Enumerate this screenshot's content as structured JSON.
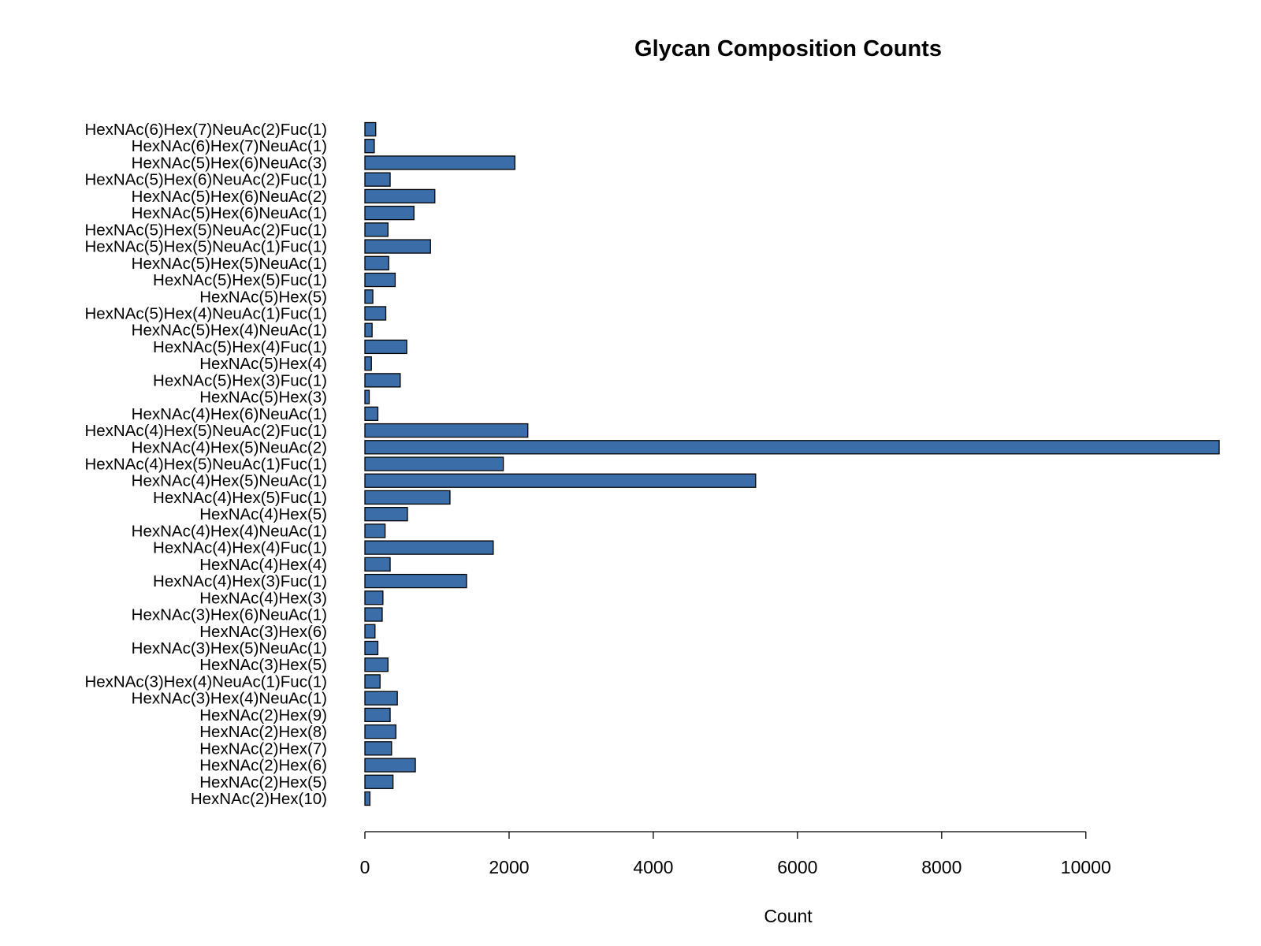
{
  "chart_data": {
    "type": "bar",
    "orientation": "horizontal",
    "title": "Glycan Composition Counts",
    "xlabel": "Count",
    "ylabel": "",
    "xlim": [
      0,
      11850
    ],
    "xticks": [
      0,
      2000,
      4000,
      6000,
      8000,
      10000
    ],
    "xtick_labels": [
      "0",
      "2000",
      "4000",
      "6000",
      "8000",
      "10000"
    ],
    "grid": false,
    "legend": false,
    "bar_color": "#3b6ea8",
    "bar_edge_color": "#000000",
    "categories": [
      "HexNAc(2)Hex(10)",
      "HexNAc(2)Hex(5)",
      "HexNAc(2)Hex(6)",
      "HexNAc(2)Hex(7)",
      "HexNAc(2)Hex(8)",
      "HexNAc(2)Hex(9)",
      "HexNAc(3)Hex(4)NeuAc(1)",
      "HexNAc(3)Hex(4)NeuAc(1)Fuc(1)",
      "HexNAc(3)Hex(5)",
      "HexNAc(3)Hex(5)NeuAc(1)",
      "HexNAc(3)Hex(6)",
      "HexNAc(3)Hex(6)NeuAc(1)",
      "HexNAc(4)Hex(3)",
      "HexNAc(4)Hex(3)Fuc(1)",
      "HexNAc(4)Hex(4)",
      "HexNAc(4)Hex(4)Fuc(1)",
      "HexNAc(4)Hex(4)NeuAc(1)",
      "HexNAc(4)Hex(5)",
      "HexNAc(4)Hex(5)Fuc(1)",
      "HexNAc(4)Hex(5)NeuAc(1)",
      "HexNAc(4)Hex(5)NeuAc(1)Fuc(1)",
      "HexNAc(4)Hex(5)NeuAc(2)",
      "HexNAc(4)Hex(5)NeuAc(2)Fuc(1)",
      "HexNAc(4)Hex(6)NeuAc(1)",
      "HexNAc(5)Hex(3)",
      "HexNAc(5)Hex(3)Fuc(1)",
      "HexNAc(5)Hex(4)",
      "HexNAc(5)Hex(4)Fuc(1)",
      "HexNAc(5)Hex(4)NeuAc(1)",
      "HexNAc(5)Hex(4)NeuAc(1)Fuc(1)",
      "HexNAc(5)Hex(5)",
      "HexNAc(5)Hex(5)Fuc(1)",
      "HexNAc(5)Hex(5)NeuAc(1)",
      "HexNAc(5)Hex(5)NeuAc(1)Fuc(1)",
      "HexNAc(5)Hex(5)NeuAc(2)Fuc(1)",
      "HexNAc(5)Hex(6)NeuAc(1)",
      "HexNAc(5)Hex(6)NeuAc(2)",
      "HexNAc(5)Hex(6)NeuAc(2)Fuc(1)",
      "HexNAc(5)Hex(6)NeuAc(3)",
      "HexNAc(6)Hex(7)NeuAc(1)",
      "HexNAc(6)Hex(7)NeuAc(2)Fuc(1)"
    ],
    "values": [
      70,
      390,
      700,
      370,
      430,
      350,
      450,
      210,
      320,
      180,
      140,
      240,
      250,
      1410,
      350,
      1780,
      280,
      590,
      1180,
      5420,
      1920,
      11850,
      2260,
      180,
      60,
      490,
      90,
      580,
      100,
      290,
      110,
      420,
      330,
      910,
      320,
      680,
      970,
      350,
      2080,
      130,
      150
    ]
  }
}
